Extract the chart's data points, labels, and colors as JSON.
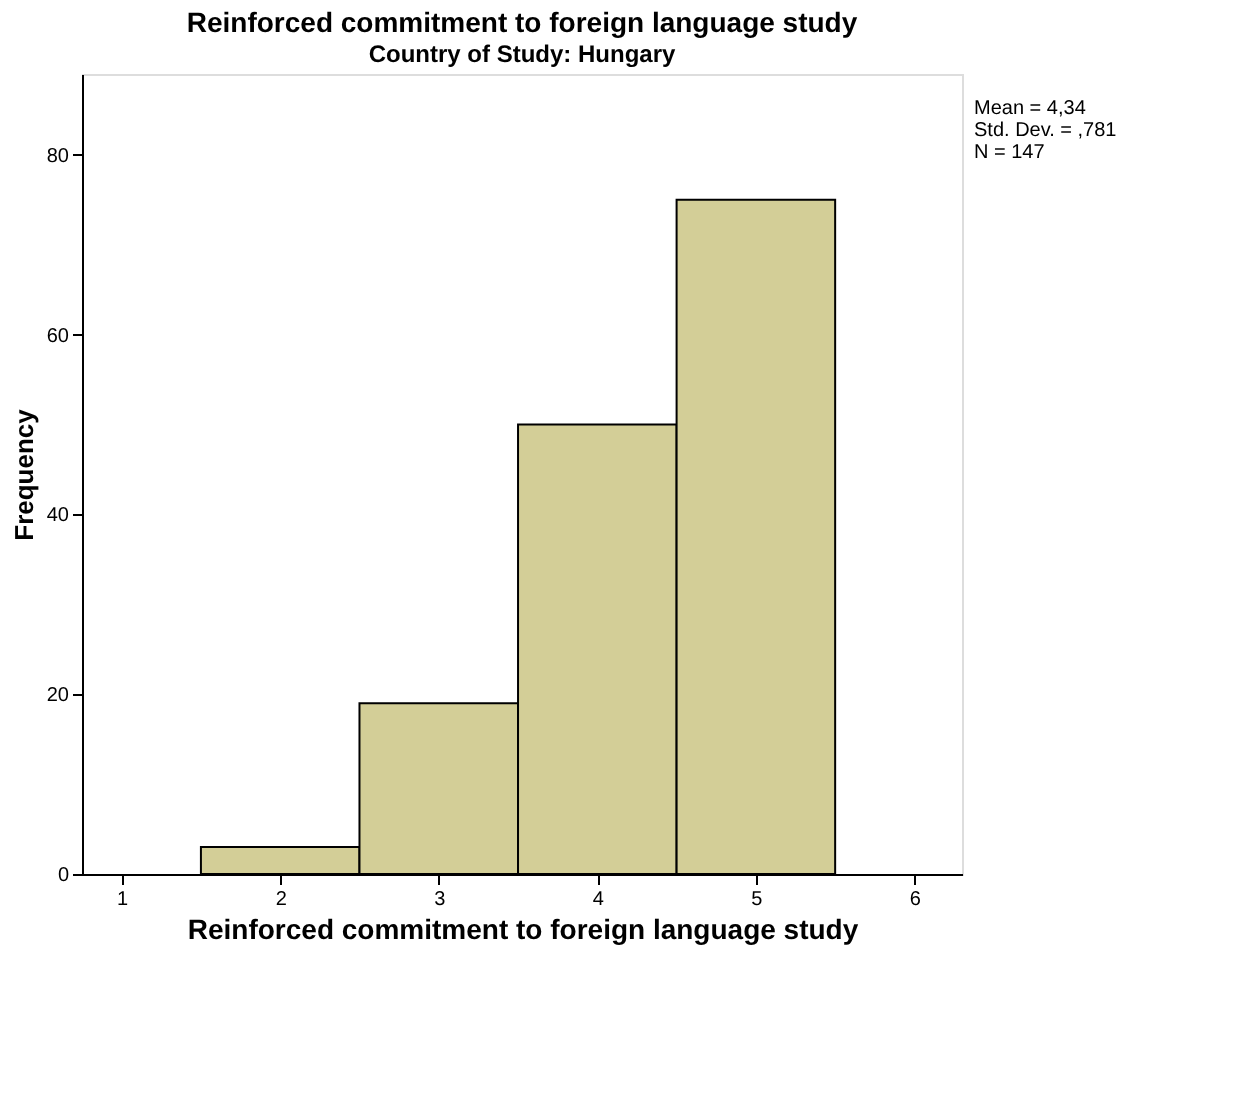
{
  "chart_data": {
    "type": "histogram",
    "title": "Reinforced commitment to foreign language study",
    "subtitle": "Country of Study: Hungary",
    "xlabel": "Reinforced commitment to foreign language study",
    "ylabel": "Frequency",
    "bins": [
      1.5,
      2.5,
      3.5,
      4.5,
      5.5
    ],
    "values": [
      3,
      19,
      50,
      75
    ],
    "color": "#d3ce97",
    "xlim": [
      0.75,
      6.3
    ],
    "xticks": [
      1,
      2,
      3,
      4,
      5,
      6
    ],
    "ylim": [
      0,
      89
    ],
    "yticks": [
      0,
      20,
      40,
      60,
      80
    ],
    "grid": false,
    "annotations": [
      "Mean = 4,34",
      "Std. Dev. = ,781",
      "N = 147"
    ]
  }
}
